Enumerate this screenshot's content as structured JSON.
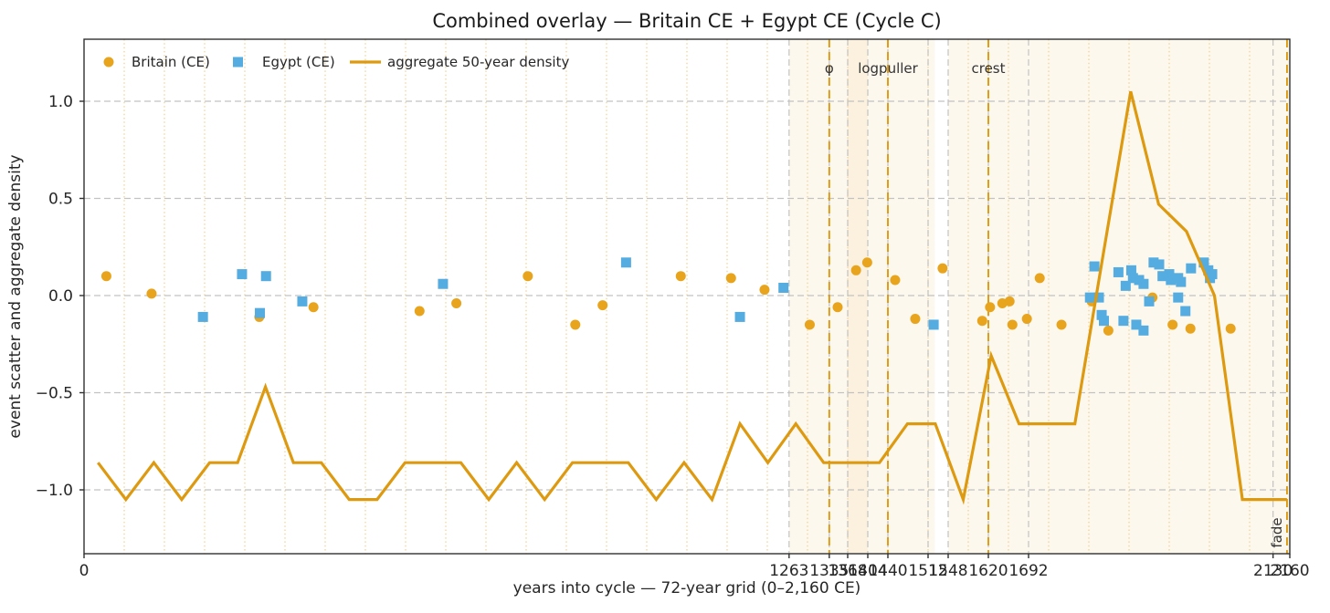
{
  "title": "Combined overlay — Britain CE + Egypt CE (Cycle C)",
  "legend": {
    "items": [
      {
        "label": "Britain (CE)",
        "marker": "circle",
        "color": "#e8a41c"
      },
      {
        "label": "Egypt (CE)",
        "marker": "square",
        "color": "#54ace0"
      },
      {
        "label": "aggregate 50-year density",
        "marker": "line",
        "color": "#dd9a10"
      }
    ]
  },
  "colors": {
    "orange_accent": "#dd9a10",
    "scatter_orange": "#e8a41c",
    "scatter_blue": "#54ace0",
    "grid_orange_dotted": "#f3cf8e",
    "grid_grey_dashed": "#c2c2c2",
    "span_fill": "#e9a426",
    "marker_dash": "#de9400",
    "spine": "#303030"
  },
  "chart_data": {
    "type": "scatter",
    "title": "Combined overlay — Britain CE + Egypt CE (Cycle C)",
    "xlabel": "years into cycle — 72-year grid (0–2,160 CE)",
    "ylabel": "event scatter and aggregate density",
    "xlim": [
      0,
      2160
    ],
    "ylim": [
      -1.33,
      1.31
    ],
    "xticks": [
      0,
      1263,
      1335,
      1368,
      1404,
      1440,
      1512,
      1548,
      1620,
      1692,
      2130,
      2160
    ],
    "yticks": [
      -1.0,
      -0.5,
      0.0,
      0.5,
      1.0
    ],
    "grid_year_step": 72,
    "legend_position": "upper left",
    "spans": [
      {
        "x0": 1263,
        "x1": 1524
      },
      {
        "x0": 1368,
        "x1": 1404
      },
      {
        "x0": 1548,
        "x1": 2160
      }
    ],
    "markers": [
      {
        "label": "φ",
        "x": 1335,
        "rotated": false
      },
      {
        "label": "logpuller",
        "x": 1440,
        "rotated": false
      },
      {
        "label": "crest",
        "x": 1620,
        "rotated": false
      },
      {
        "label": "fade",
        "x": 2155,
        "rotated": true
      }
    ],
    "series": [
      {
        "name": "Britain (CE)",
        "type": "scatter",
        "marker": "circle",
        "color": "#e8a41c",
        "points": [
          [
            40,
            0.1
          ],
          [
            121,
            0.01
          ],
          [
            314,
            -0.11
          ],
          [
            411,
            -0.06
          ],
          [
            601,
            -0.08
          ],
          [
            667,
            -0.04
          ],
          [
            795,
            0.1
          ],
          [
            880,
            -0.15
          ],
          [
            929,
            -0.05
          ],
          [
            1069,
            0.1
          ],
          [
            1159,
            0.09
          ],
          [
            1219,
            0.03
          ],
          [
            1300,
            -0.15
          ],
          [
            1350,
            -0.06
          ],
          [
            1383,
            0.13
          ],
          [
            1403,
            0.17
          ],
          [
            1453,
            0.08
          ],
          [
            1489,
            -0.12
          ],
          [
            1538,
            0.14
          ],
          [
            1609,
            -0.13
          ],
          [
            1623,
            -0.06
          ],
          [
            1645,
            -0.04
          ],
          [
            1658,
            -0.03
          ],
          [
            1663,
            -0.15
          ],
          [
            1689,
            -0.12
          ],
          [
            1712,
            0.09
          ],
          [
            1751,
            -0.15
          ],
          [
            1805,
            -0.03
          ],
          [
            1835,
            -0.18
          ],
          [
            1914,
            -0.01
          ],
          [
            1950,
            -0.15
          ],
          [
            1982,
            -0.17
          ],
          [
            2054,
            -0.17
          ]
        ]
      },
      {
        "name": "Egypt (CE)",
        "type": "scatter",
        "marker": "square",
        "color": "#54ace0",
        "points": [
          [
            213,
            -0.11
          ],
          [
            283,
            0.11
          ],
          [
            315,
            -0.09
          ],
          [
            326,
            0.1
          ],
          [
            391,
            -0.03
          ],
          [
            643,
            0.06
          ],
          [
            971,
            0.17
          ],
          [
            1175,
            -0.11
          ],
          [
            1253,
            0.04
          ],
          [
            1522,
            -0.15
          ],
          [
            1802,
            -0.01
          ],
          [
            1810,
            0.15
          ],
          [
            1818,
            -0.01
          ],
          [
            1823,
            -0.1
          ],
          [
            1827,
            -0.13
          ],
          [
            1853,
            0.12
          ],
          [
            1862,
            -0.13
          ],
          [
            1866,
            0.05
          ],
          [
            1876,
            0.13
          ],
          [
            1879,
            0.09
          ],
          [
            1885,
            -0.15
          ],
          [
            1890,
            0.08
          ],
          [
            1898,
            0.06
          ],
          [
            1898,
            -0.18
          ],
          [
            1908,
            -0.03
          ],
          [
            1916,
            0.17
          ],
          [
            1926,
            0.16
          ],
          [
            1932,
            0.1
          ],
          [
            1944,
            0.11
          ],
          [
            1947,
            0.08
          ],
          [
            1960,
            0.09
          ],
          [
            1960,
            -0.01
          ],
          [
            1965,
            0.07
          ],
          [
            1973,
            -0.08
          ],
          [
            1983,
            0.14
          ],
          [
            2006,
            0.17
          ],
          [
            2014,
            0.13
          ],
          [
            2021,
            0.11
          ],
          [
            2017,
            0.09
          ]
        ]
      },
      {
        "name": "aggregate 50-year density",
        "type": "line",
        "color": "#dd9a10",
        "x": [
          25,
          75,
          125,
          175,
          225,
          275,
          325,
          375,
          425,
          475,
          525,
          575,
          625,
          675,
          725,
          775,
          825,
          875,
          925,
          975,
          1025,
          1075,
          1125,
          1175,
          1225,
          1275,
          1325,
          1375,
          1425,
          1475,
          1525,
          1575,
          1625,
          1675,
          1725,
          1775,
          1825,
          1875,
          1925,
          1975,
          2025,
          2075,
          2125,
          2155
        ],
        "y": [
          -0.86,
          -1.05,
          -0.86,
          -1.05,
          -0.86,
          -0.86,
          -0.47,
          -0.86,
          -0.86,
          -1.05,
          -1.05,
          -0.86,
          -0.86,
          -0.86,
          -1.05,
          -0.86,
          -1.05,
          -0.86,
          -0.86,
          -0.86,
          -1.05,
          -0.86,
          -1.05,
          -0.66,
          -0.86,
          -0.66,
          -0.86,
          -0.86,
          -0.86,
          -0.66,
          -0.66,
          -1.05,
          -0.31,
          -0.66,
          -0.66,
          -0.66,
          0.2,
          1.05,
          0.47,
          0.33,
          0.0,
          -1.05,
          -1.05,
          -1.05
        ]
      }
    ]
  }
}
